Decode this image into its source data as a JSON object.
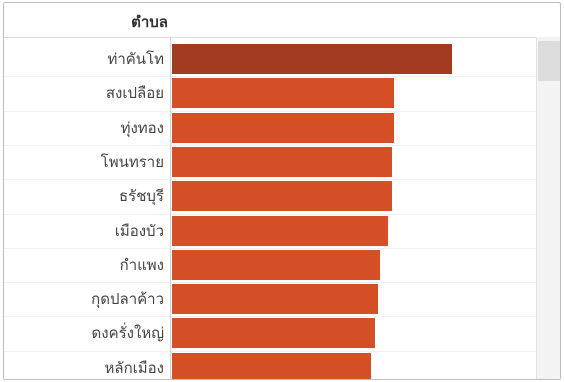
{
  "header": {
    "column_label": "ตำบล"
  },
  "colors": {
    "highlight": "#a33a22",
    "bar": "#d44f25"
  },
  "chart_data": {
    "type": "bar",
    "orientation": "horizontal",
    "categories": [
      "ท่าคันโท",
      "สงเปลือย",
      "ทุ่งทอง",
      "โพนทราย",
      "ธรัชบุรี",
      "เมืองบัว",
      "กำแพง",
      "กุดปลาค้าว",
      "ดงครั่งใหญ่",
      "หลักเมือง"
    ],
    "values": [
      280,
      222,
      222,
      220,
      220,
      216,
      208,
      206,
      203,
      199
    ],
    "highlight_index": 0,
    "xlim": [
      0,
      364
    ],
    "grid": false,
    "legend": "none"
  }
}
